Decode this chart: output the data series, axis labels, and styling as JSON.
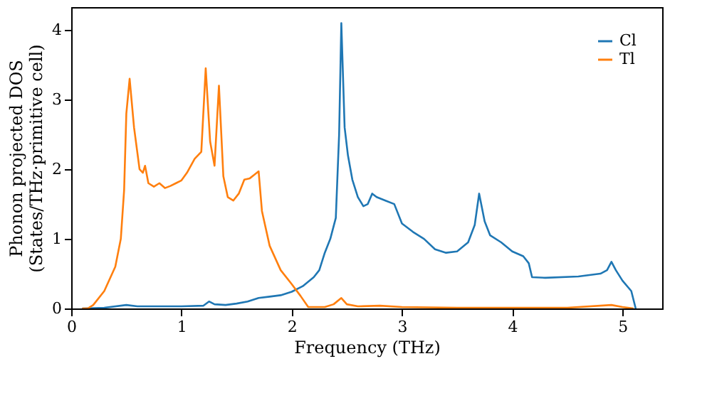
{
  "chart_data": {
    "type": "line",
    "xlabel": "Frequency (THz)",
    "ylabel": "Phonon projected DOS\n(States/THz·primitive cell)",
    "xlim": [
      0,
      5.36
    ],
    "ylim": [
      0,
      4.33
    ],
    "xticks": [
      0,
      1,
      2,
      3,
      4,
      5
    ],
    "yticks": [
      0,
      1,
      2,
      3,
      4
    ],
    "grid": false,
    "legend": "top right",
    "line_style": "solid",
    "series": [
      {
        "name": "Cl",
        "color": "#1f77b4",
        "x": [
          0.1,
          0.3,
          0.5,
          0.6,
          1.0,
          1.2,
          1.25,
          1.3,
          1.4,
          1.5,
          1.6,
          1.7,
          1.8,
          1.9,
          2.0,
          2.1,
          2.2,
          2.25,
          2.3,
          2.35,
          2.4,
          2.43,
          2.45,
          2.48,
          2.51,
          2.55,
          2.6,
          2.65,
          2.69,
          2.73,
          2.77,
          2.85,
          2.93,
          3.0,
          3.1,
          3.2,
          3.3,
          3.4,
          3.5,
          3.6,
          3.66,
          3.7,
          3.75,
          3.8,
          3.9,
          4.0,
          4.1,
          4.15,
          4.18,
          4.3,
          4.6,
          4.8,
          4.86,
          4.9,
          4.94,
          5.0,
          5.08,
          5.12
        ],
        "values": [
          0,
          0.01,
          0.05,
          0.03,
          0.03,
          0.04,
          0.1,
          0.06,
          0.05,
          0.07,
          0.1,
          0.15,
          0.17,
          0.19,
          0.24,
          0.32,
          0.45,
          0.55,
          0.8,
          1.0,
          1.3,
          2.5,
          4.1,
          2.6,
          2.2,
          1.85,
          1.6,
          1.47,
          1.5,
          1.65,
          1.6,
          1.55,
          1.5,
          1.22,
          1.1,
          1.0,
          0.85,
          0.8,
          0.82,
          0.95,
          1.2,
          1.65,
          1.25,
          1.05,
          0.95,
          0.82,
          0.75,
          0.65,
          0.45,
          0.44,
          0.46,
          0.5,
          0.55,
          0.67,
          0.55,
          0.4,
          0.25,
          0
        ]
      },
      {
        "name": "Tl",
        "color": "#ff7f0e",
        "x": [
          0.1,
          0.15,
          0.2,
          0.3,
          0.4,
          0.45,
          0.48,
          0.5,
          0.53,
          0.57,
          0.62,
          0.65,
          0.67,
          0.7,
          0.75,
          0.8,
          0.85,
          0.9,
          0.95,
          1.0,
          1.05,
          1.12,
          1.18,
          1.22,
          1.26,
          1.3,
          1.34,
          1.38,
          1.42,
          1.47,
          1.52,
          1.57,
          1.62,
          1.66,
          1.7,
          1.73,
          1.8,
          1.9,
          2.0,
          2.08,
          2.15,
          2.3,
          2.38,
          2.45,
          2.5,
          2.6,
          2.8,
          3.0,
          3.5,
          4.5,
          4.9,
          5.0,
          5.1
        ],
        "values": [
          0,
          0,
          0.05,
          0.25,
          0.6,
          1.0,
          1.7,
          2.8,
          3.3,
          2.6,
          2.0,
          1.95,
          2.05,
          1.8,
          1.75,
          1.8,
          1.73,
          1.76,
          1.8,
          1.84,
          1.95,
          2.15,
          2.25,
          3.45,
          2.4,
          2.05,
          3.2,
          1.9,
          1.6,
          1.55,
          1.65,
          1.85,
          1.87,
          1.92,
          1.97,
          1.4,
          0.9,
          0.55,
          0.35,
          0.18,
          0.02,
          0.02,
          0.06,
          0.15,
          0.06,
          0.03,
          0.04,
          0.02,
          0.01,
          0.01,
          0.05,
          0.02,
          0
        ]
      }
    ]
  }
}
